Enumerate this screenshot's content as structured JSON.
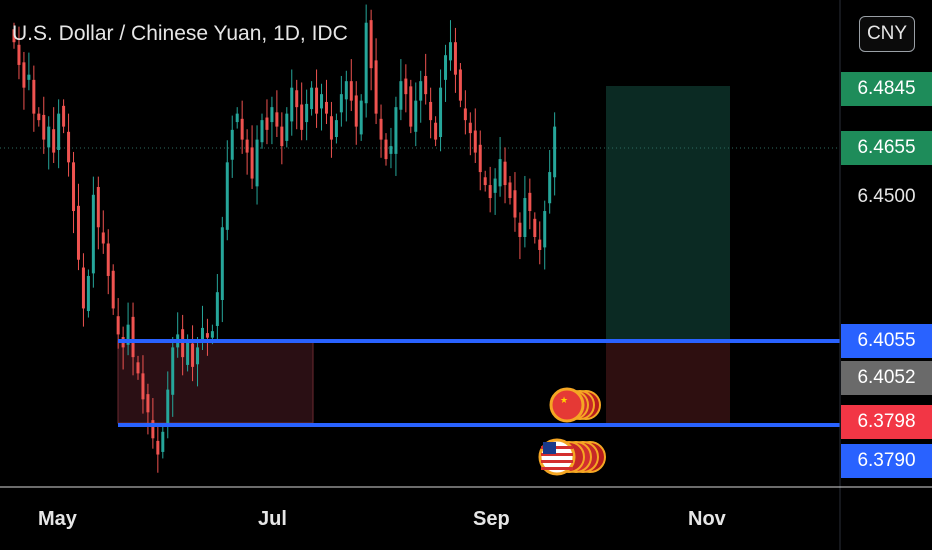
{
  "header": {
    "title": "U.S. Dollar / Chinese Yuan, 1D, IDC",
    "currency_button": "CNY"
  },
  "price_axis": {
    "tags": [
      {
        "label": "6.4845",
        "style": "target",
        "color": "#1e8c5a"
      },
      {
        "label": "6.4655",
        "style": "last",
        "color": "#1e8c5a"
      },
      {
        "label": "6.4500",
        "style": "plain",
        "color": ""
      },
      {
        "label": "6.4055",
        "style": "line",
        "color": "#2962ff"
      },
      {
        "label": "6.4052",
        "style": "entry",
        "color": "#6a6a6a"
      },
      {
        "label": "6.3798",
        "style": "stop",
        "color": "#f23645"
      },
      {
        "label": "6.3790",
        "style": "line",
        "color": "#2962ff"
      }
    ]
  },
  "time_axis": {
    "labels": [
      "May",
      "Jul",
      "Sep",
      "Nov"
    ]
  },
  "event_icons": [
    "china-flag-icon",
    "us-flag-icon"
  ],
  "colors": {
    "up": "#26a69a",
    "down": "#ef5350",
    "support_line": "#2962ff",
    "zone_fill": "#2a0f14",
    "target_fill": "#0b2a23"
  },
  "chart_data": {
    "type": "candlestick",
    "title": "U.S. Dollar / Chinese Yuan, 1D, IDC",
    "symbol": "USD/CNY",
    "x_labels": [
      "May",
      "Jul",
      "Sep",
      "Nov"
    ],
    "ylim": [
      6.355,
      6.505
    ],
    "horizontal_lines": [
      6.4055,
      6.379
    ],
    "last_price": 6.4655,
    "position": {
      "type": "long",
      "entry": 6.4052,
      "target": 6.4845,
      "stop": 6.3798
    },
    "closes": [
      6.492,
      6.485,
      6.478,
      6.482,
      6.47,
      6.468,
      6.462,
      6.466,
      6.458,
      6.47,
      6.466,
      6.455,
      6.44,
      6.425,
      6.41,
      6.42,
      6.445,
      6.435,
      6.43,
      6.42,
      6.41,
      6.402,
      6.398,
      6.405,
      6.395,
      6.39,
      6.382,
      6.378,
      6.37,
      6.365,
      6.372,
      6.385,
      6.398,
      6.402,
      6.395,
      6.4,
      6.392,
      6.398,
      6.404,
      6.401,
      6.403,
      6.415,
      6.435,
      6.455,
      6.465,
      6.47,
      6.462,
      6.458,
      6.45,
      6.462,
      6.468,
      6.465,
      6.472,
      6.466,
      6.46,
      6.47,
      6.478,
      6.472,
      6.465,
      6.473,
      6.478,
      6.47,
      6.476,
      6.47,
      6.462,
      6.468,
      6.476,
      6.48,
      6.474,
      6.466,
      6.474,
      6.498,
      6.484,
      6.47,
      6.462,
      6.456,
      6.46,
      6.472,
      6.48,
      6.476,
      6.466,
      6.474,
      6.48,
      6.476,
      6.468,
      6.462,
      6.478,
      6.488,
      6.492,
      6.482,
      6.474,
      6.468,
      6.464,
      6.458,
      6.452,
      6.448,
      6.444,
      6.45,
      6.456,
      6.448,
      6.444,
      6.438,
      6.432,
      6.444,
      6.44,
      6.432,
      6.428,
      6.44,
      6.452,
      6.466
    ]
  }
}
